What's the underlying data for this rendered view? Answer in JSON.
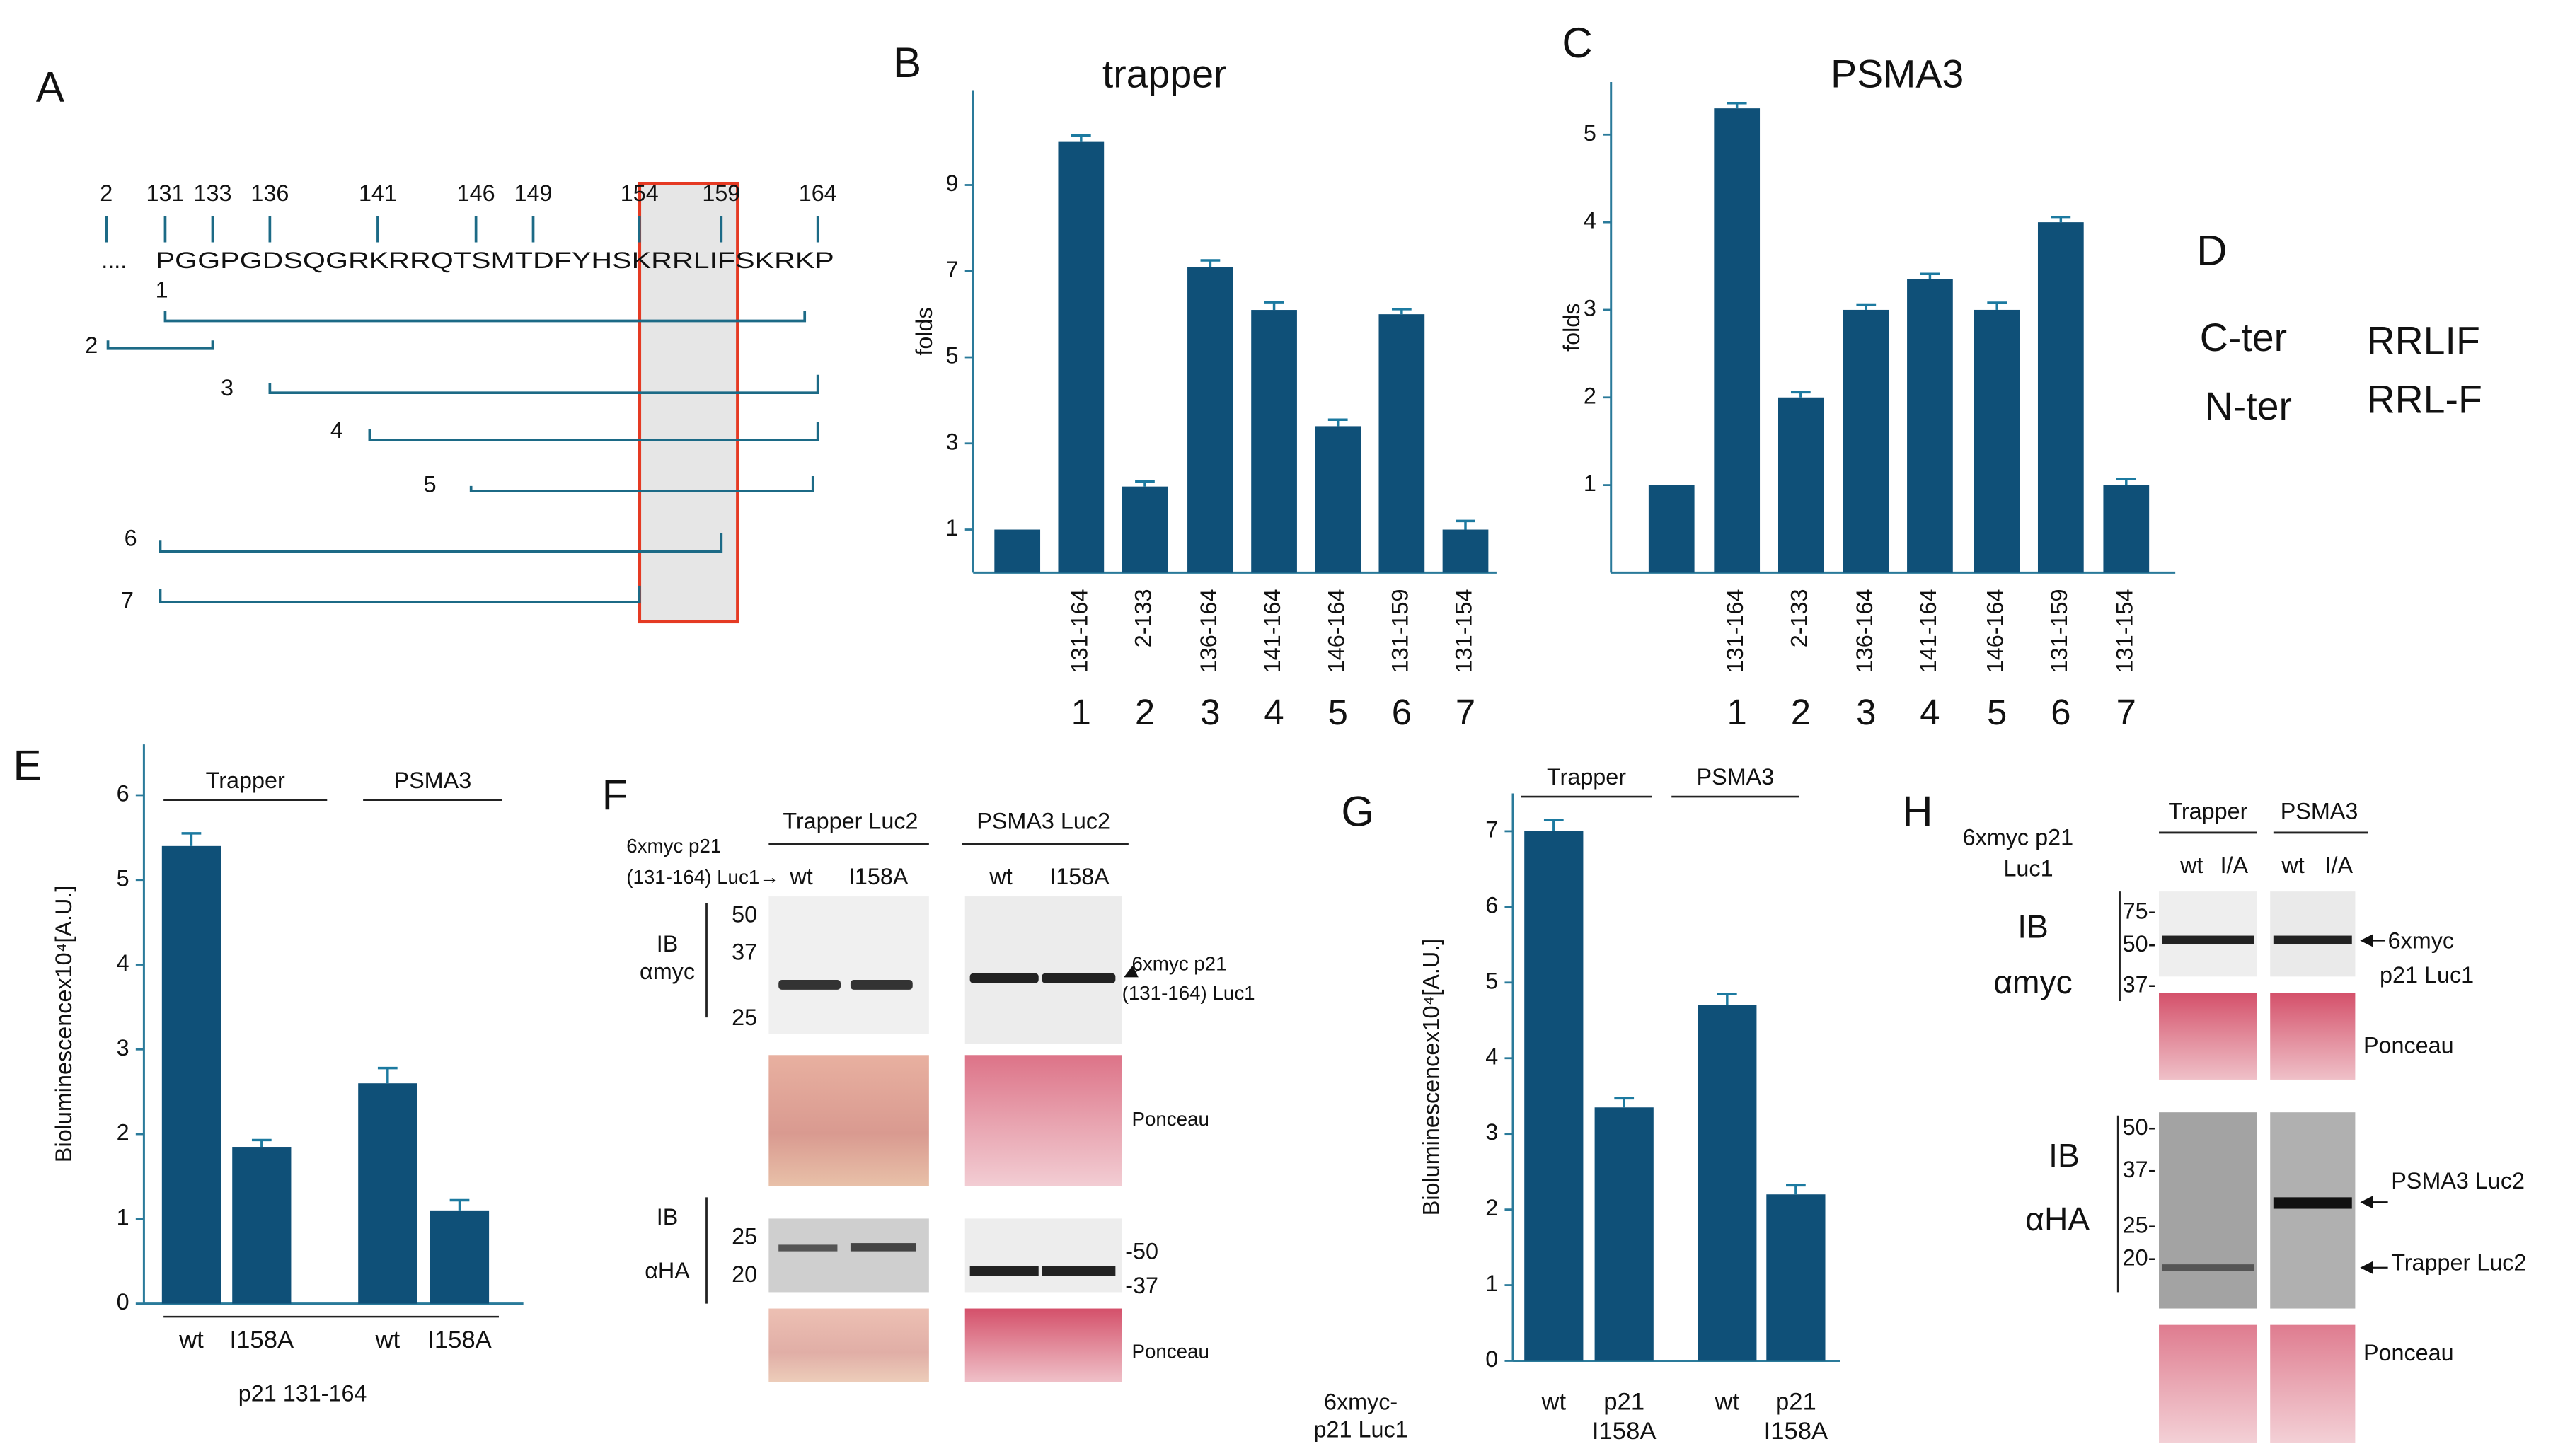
{
  "panel_labels": [
    "A",
    "B",
    "C",
    "D",
    "E",
    "F",
    "G",
    "H"
  ],
  "panel_a": {
    "positions": [
      2,
      131,
      133,
      136,
      141,
      146,
      149,
      154,
      159,
      164
    ],
    "dots": "....",
    "sequence": "PGGPGDSQGRKRRQTSMTDFYHSKRRLIFSKRKP",
    "constructs": [
      "1",
      "2",
      "3",
      "4",
      "5",
      "6",
      "7"
    ]
  },
  "panel_d": {
    "rows": [
      [
        "C-ter",
        "RRLIF"
      ],
      [
        "N-ter",
        "RRL-F"
      ]
    ]
  },
  "chart_data": [
    {
      "type": "bar",
      "title": "trapper",
      "ylabel": "folds",
      "categories": [
        null,
        "131-164",
        "2-133",
        "136-164",
        "141-164",
        "146-164",
        "131-159",
        "131-154"
      ],
      "construct_numbers": [
        null,
        "1",
        "2",
        "3",
        "4",
        "5",
        "6",
        "7"
      ],
      "values": [
        1,
        10,
        2,
        7.1,
        6.1,
        3.4,
        6.0,
        1
      ],
      "errors": [
        0,
        0.15,
        0.12,
        0.15,
        0.18,
        0.15,
        0.12,
        0.2
      ],
      "color": "#0f5078",
      "ylim": [
        0,
        11.2
      ],
      "yticks": [
        1,
        3,
        5,
        7,
        9
      ]
    },
    {
      "type": "bar",
      "title": "PSMA3",
      "ylabel": "folds",
      "categories": [
        null,
        "131-164",
        "2-133",
        "136-164",
        "141-164",
        "146-164",
        "131-159",
        "131-154"
      ],
      "construct_numbers": [
        null,
        "1",
        "2",
        "3",
        "4",
        "5",
        "6",
        "7"
      ],
      "values": [
        1,
        5.3,
        2.0,
        3.0,
        3.35,
        3.0,
        4.0,
        1.0
      ],
      "errors": [
        0,
        0.06,
        0.06,
        0.06,
        0.06,
        0.08,
        0.06,
        0.07
      ],
      "color": "#0f5078",
      "ylim": [
        0,
        5.6
      ],
      "yticks": [
        1,
        2,
        3,
        4,
        5
      ]
    },
    {
      "type": "bar",
      "ylabel": "Bioluminescencex10⁴[A.U.]",
      "groups": [
        "Trapper",
        "PSMA3"
      ],
      "categories": [
        "wt",
        "I158A",
        "wt",
        "I158A"
      ],
      "xlabel": "p21  131-164",
      "values": [
        5.4,
        1.85,
        2.6,
        1.1
      ],
      "errors": [
        0.15,
        0.08,
        0.18,
        0.12
      ],
      "color": "#0f5078",
      "ylim": [
        0,
        6.6
      ],
      "yticks": [
        0,
        1,
        2,
        3,
        4,
        5,
        6
      ]
    },
    {
      "type": "bar",
      "ylabel": "Bioluminescencex10⁴[A.U.]",
      "groups": [
        "Trapper",
        "PSMA3"
      ],
      "categories": [
        "wt",
        "p21\nI158A",
        "wt",
        "p21\nI158A"
      ],
      "xlabel": "6xmyc-\np21 Luc1",
      "values": [
        7.0,
        3.35,
        4.7,
        2.2
      ],
      "errors": [
        0.15,
        0.12,
        0.15,
        0.12
      ],
      "color": "#0f5078",
      "ylim": [
        0,
        7.5
      ],
      "yticks": [
        0,
        1,
        2,
        3,
        4,
        5,
        6,
        7
      ]
    }
  ],
  "panel_f": {
    "groups": [
      "Trapper Luc2",
      "PSMA3 Luc2"
    ],
    "construct": [
      "6xmyc p21",
      "(131-164) Luc1→"
    ],
    "lanes": [
      "wt",
      "I158A",
      "wt",
      "I158A"
    ],
    "ib_myc": [
      "IB",
      "αmyc"
    ],
    "myc_markers": [
      "50",
      "37",
      "25"
    ],
    "myc_band": [
      "6xmyc p21",
      "(131-164) Luc1"
    ],
    "ponceau": [
      "Ponceau",
      "Ponceau"
    ],
    "ib_ha": [
      "IB",
      "αHA"
    ],
    "ha_markers_left": [
      "25",
      "20"
    ],
    "ha_markers_right": [
      "-50",
      "-37"
    ]
  },
  "panel_h": {
    "construct": [
      "6xmyc p21",
      "Luc1"
    ],
    "groups": [
      "Trapper",
      "PSMA3"
    ],
    "lanes": [
      "wt",
      "I/A",
      "wt",
      "I/A"
    ],
    "ib_myc": [
      "IB",
      "αmyc"
    ],
    "myc_markers": [
      "75-",
      "50-",
      "37-"
    ],
    "myc_band": [
      "6xmyc",
      "p21 Luc1"
    ],
    "ponceau": [
      "Ponceau",
      "Ponceau"
    ],
    "ib_ha": [
      "IB",
      "αHA"
    ],
    "ha_markers": [
      "50-",
      "37-",
      "25-",
      "20-"
    ],
    "ha_bands": [
      "PSMA3 Luc2",
      "Trapper Luc2"
    ]
  }
}
